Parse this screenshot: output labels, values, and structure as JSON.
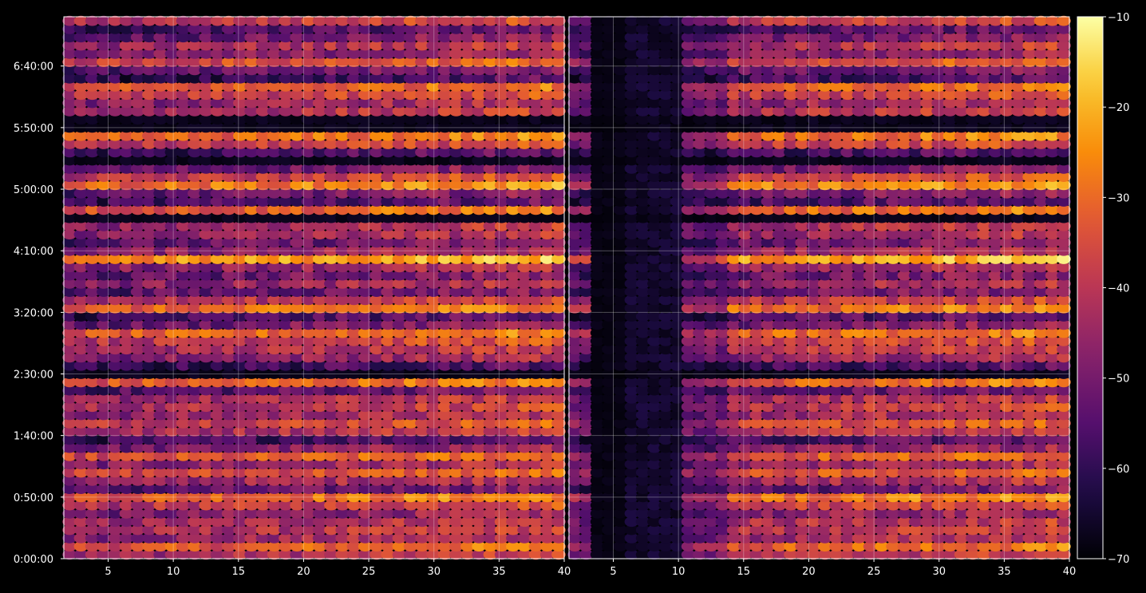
{
  "chart_data": {
    "type": "heatmap",
    "colormap": "inferno",
    "background": "#000000",
    "axis_color": "#ffffff",
    "grid": true,
    "panels": [
      {
        "name": "left",
        "x_ticks": [
          "5",
          "10",
          "15",
          "20",
          "25",
          "30",
          "35",
          "40"
        ],
        "x_tick_values": [
          5,
          10,
          15,
          20,
          25,
          30,
          35,
          40
        ],
        "xlim": [
          1.6,
          40
        ]
      },
      {
        "name": "right",
        "x_ticks": [
          "5",
          "10",
          "15",
          "20",
          "25",
          "30",
          "35",
          "40"
        ],
        "x_tick_values": [
          5,
          10,
          15,
          20,
          25,
          30,
          35,
          40
        ],
        "xlim": [
          1.6,
          40
        ],
        "left_dark_until": 10
      }
    ],
    "y_ticks": [
      "0:00:00",
      "0:50:00",
      "1:40:00",
      "2:30:00",
      "3:20:00",
      "4:10:00",
      "5:00:00",
      "5:50:00",
      "6:40:00"
    ],
    "y_tick_seconds": [
      0,
      3000,
      6000,
      9000,
      12000,
      15000,
      18000,
      21000,
      24000
    ],
    "ylim_seconds": [
      0,
      26400
    ],
    "colorbar": {
      "ticks": [
        "−10",
        "−20",
        "−30",
        "−40",
        "−50",
        "−60",
        "−70"
      ],
      "tick_values": [
        -10,
        -20,
        -30,
        -40,
        -50,
        -60,
        -70
      ],
      "range": [
        -70,
        -10
      ]
    },
    "dark_bands_seconds": [
      [
        21000,
        21600
      ],
      [
        9000,
        9300
      ],
      [
        3900,
        4100
      ],
      [
        16500,
        16800
      ],
      [
        19200,
        19400
      ]
    ]
  }
}
